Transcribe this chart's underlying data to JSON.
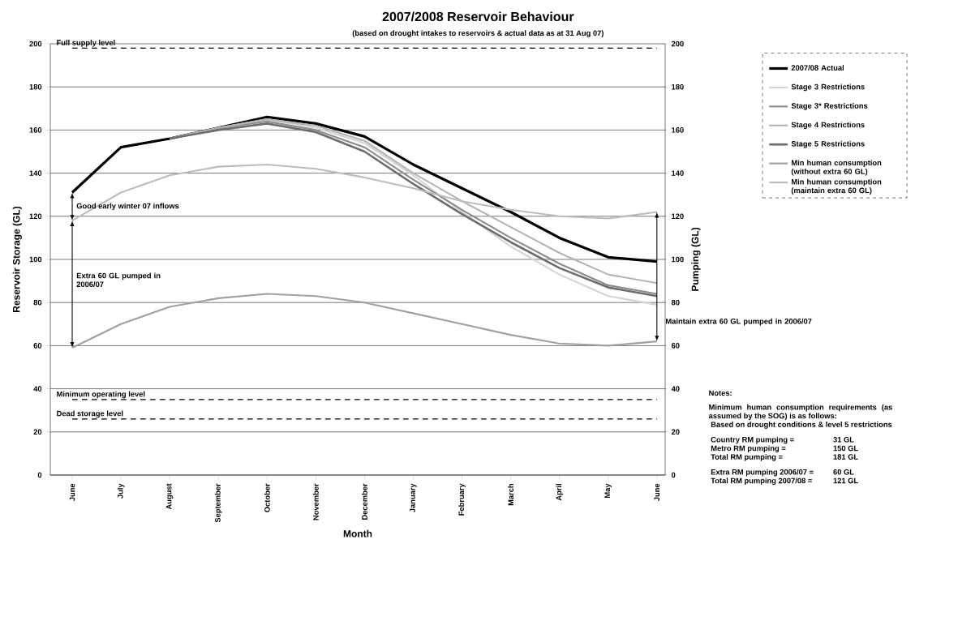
{
  "chart_data": {
    "type": "line",
    "title": "2007/2008 Reservoir Behaviour",
    "subtitle": "(based on drought intakes to reservoirs & actual data as at 31 Aug 07)",
    "xlabel": "Month",
    "ylabel": "Reservoir Storage (GL)",
    "y2label": "Pumping (GL)",
    "categories": [
      "June",
      "July",
      "August",
      "September",
      "October",
      "November",
      "December",
      "January",
      "February",
      "March",
      "April",
      "May",
      "June"
    ],
    "series": [
      {
        "name": "2007/08 Actual",
        "color": "#000000",
        "values": [
          131,
          152,
          156,
          161,
          166,
          163,
          157,
          144,
          133,
          122,
          110,
          101,
          99
        ]
      },
      {
        "name": "Stage 3 Restrictions",
        "color": "#d4d4d4",
        "values": [
          null,
          null,
          156,
          161,
          165,
          161,
          154,
          139,
          122,
          106,
          93,
          83,
          79
        ]
      },
      {
        "name": "Stage 3* Restrictions",
        "color": "#8c8c8c",
        "values": [
          null,
          null,
          156,
          161,
          164,
          160,
          152,
          137,
          123,
          110,
          98,
          88,
          84
        ]
      },
      {
        "name": "Stage 4 Restrictions",
        "color": "#b4b4b4",
        "values": [
          null,
          null,
          156,
          161,
          165,
          162,
          155,
          140,
          127,
          115,
          103,
          93,
          89
        ]
      },
      {
        "name": "Stage 5 Restrictions",
        "color": "#6e6e6e",
        "values": [
          null,
          null,
          156,
          160,
          163,
          159,
          150,
          135,
          121,
          108,
          96,
          87,
          83
        ]
      },
      {
        "name": "Min human consumption (without extra 60 GL)",
        "color": "#a0a0a0",
        "values": [
          59,
          70,
          78,
          82,
          84,
          83,
          80,
          75,
          70,
          65,
          61,
          60,
          62
        ]
      },
      {
        "name": "Min human consumption (maintain extra 60 GL)",
        "color": "#bcbcbc",
        "values": [
          118,
          131,
          139,
          143,
          144,
          142,
          138,
          133,
          127,
          123,
          120,
          119,
          122
        ]
      }
    ],
    "ylim": [
      0,
      200
    ],
    "yticks": [
      0,
      20,
      40,
      60,
      80,
      100,
      120,
      140,
      160,
      180,
      200
    ],
    "y2lim": [
      0,
      200
    ],
    "y2ticks": [
      0,
      20,
      40,
      60,
      80,
      100,
      120,
      140,
      160,
      180,
      200
    ],
    "ref_lines": [
      {
        "axis": "y",
        "value": 198,
        "label": "Full supply level",
        "color": "#000000",
        "line_style": "dashed"
      },
      {
        "axis": "y",
        "value": 35,
        "label": "Minimum operating level",
        "color": "#000000",
        "line_style": "dashed"
      },
      {
        "axis": "y",
        "value": 26,
        "label": "Dead storage level",
        "color": "#000000",
        "line_style": "dashed"
      }
    ],
    "annotations": [
      {
        "text": "Good early winter 07 inflows",
        "y": 131
      },
      "Extra 60 GL pumped in 2006/07",
      "Maintain extra 60 GL pumped in 2006/07",
      "Notes:",
      "Minimum human consumption requirements (as assumed by the SOG) is as follows:",
      "Based on drought conditions & level 5 restrictions",
      "Country RM pumping =",
      "31 GL",
      "Metro RM pumping =",
      "150 GL",
      "Total RM pumping =",
      "181 GL",
      "Extra RM pumping 2006/07 =",
      "60 GL",
      "Total RM pumping 2007/08 =",
      "121 GL"
    ],
    "grid": "y",
    "legend": "right",
    "marker": "none"
  }
}
